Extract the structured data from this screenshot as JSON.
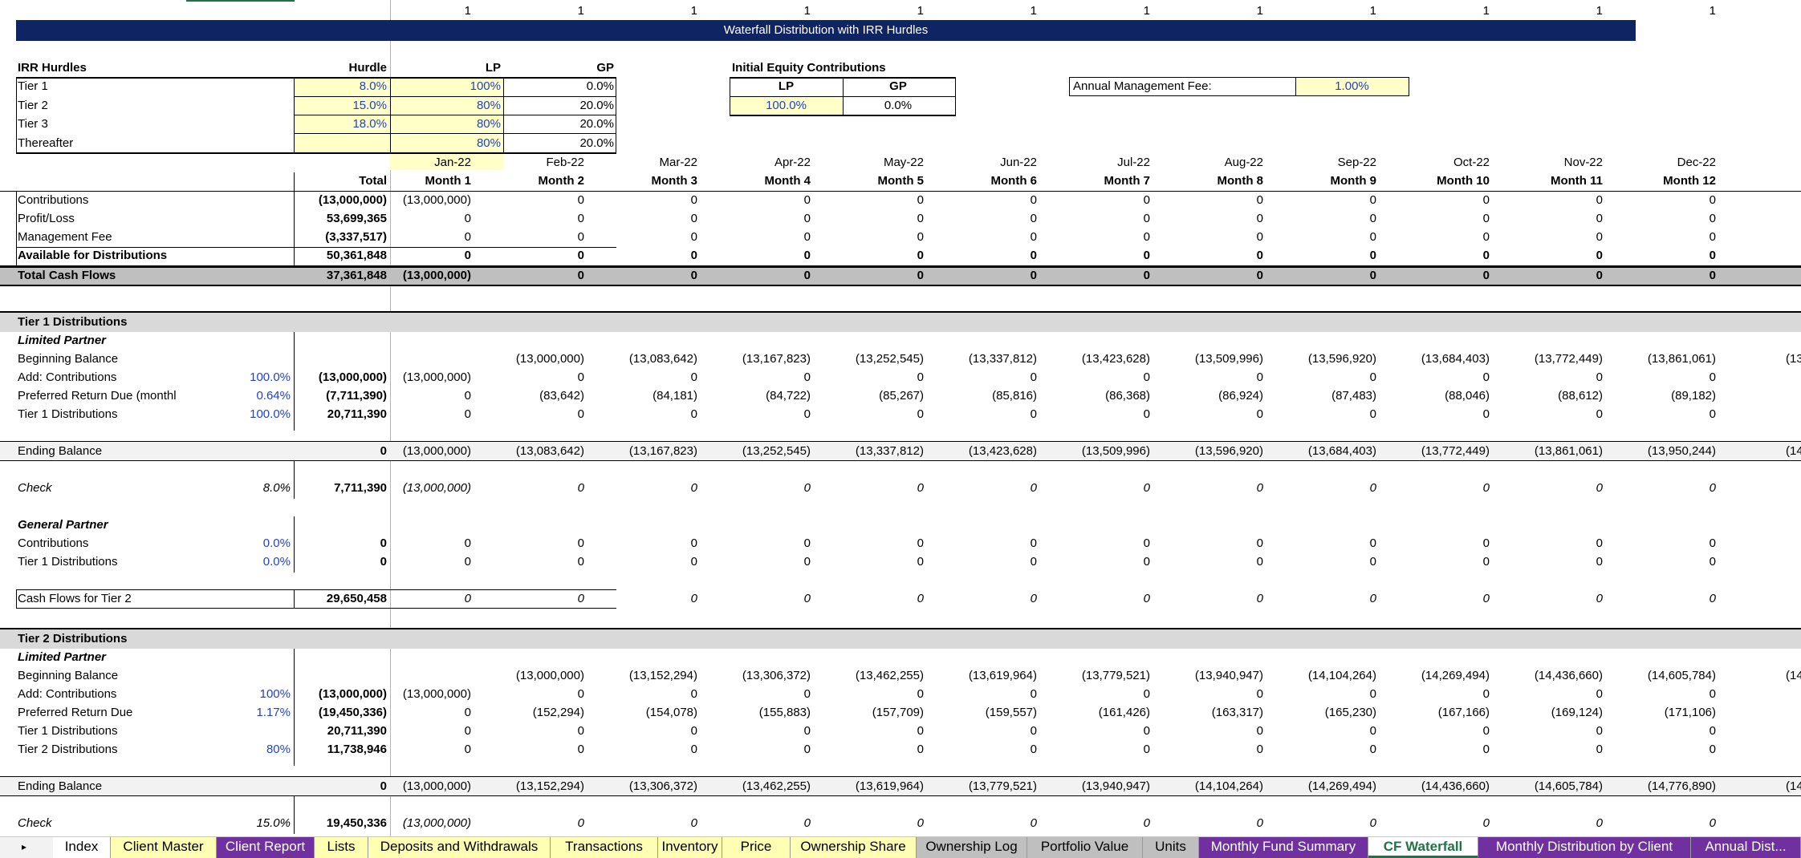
{
  "ones": [
    "1",
    "1",
    "1",
    "1",
    "1",
    "1",
    "1",
    "1",
    "1",
    "1",
    "1",
    "1"
  ],
  "banner": "Waterfall Distribution with IRR Hurdles",
  "hurdles": {
    "title": "IRR Hurdles",
    "col_hurdle": "Hurdle",
    "col_lp": "LP",
    "col_gp": "GP",
    "rows": [
      {
        "label": "Tier 1",
        "hurdle": "8.0%",
        "lp": "100%",
        "gp": "0.0%"
      },
      {
        "label": "Tier 2",
        "hurdle": "15.0%",
        "lp": "80%",
        "gp": "20.0%"
      },
      {
        "label": "Tier 3",
        "hurdle": "18.0%",
        "lp": "80%",
        "gp": "20.0%"
      },
      {
        "label": "Thereafter",
        "hurdle": "",
        "lp": "80%",
        "gp": "20.0%"
      }
    ]
  },
  "equity": {
    "title": "Initial Equity Contributions",
    "lp_label": "LP",
    "gp_label": "GP",
    "lp": "100.0%",
    "gp": "0.0%"
  },
  "fee": {
    "label": "Annual Management Fee:",
    "value": "1.00%"
  },
  "dates": [
    "Jan-22",
    "Feb-22",
    "Mar-22",
    "Apr-22",
    "May-22",
    "Jun-22",
    "Jul-22",
    "Aug-22",
    "Sep-22",
    "Oct-22",
    "Nov-22",
    "Dec-22"
  ],
  "total_label": "Total",
  "months": [
    "Month 1",
    "Month 2",
    "Month 3",
    "Month 4",
    "Month 5",
    "Month 6",
    "Month 7",
    "Month 8",
    "Month 9",
    "Month 10",
    "Month 11",
    "Month 12"
  ],
  "cf": [
    {
      "label": "Contributions",
      "total": "(13,000,000)",
      "v": [
        "(13,000,000)",
        "0",
        "0",
        "0",
        "0",
        "0",
        "0",
        "0",
        "0",
        "0",
        "0",
        "0"
      ]
    },
    {
      "label": "Profit/Loss",
      "total": "53,699,365",
      "v": [
        "0",
        "0",
        "0",
        "0",
        "0",
        "0",
        "0",
        "0",
        "0",
        "0",
        "0",
        "0"
      ]
    },
    {
      "label": "Management Fee",
      "total": "(3,337,517)",
      "v": [
        "0",
        "0",
        "0",
        "0",
        "0",
        "0",
        "0",
        "0",
        "0",
        "0",
        "0",
        "0"
      ]
    },
    {
      "label": "Available for Distributions",
      "total": "50,361,848",
      "v": [
        "0",
        "0",
        "0",
        "0",
        "0",
        "0",
        "0",
        "0",
        "0",
        "0",
        "0",
        "0"
      ]
    },
    {
      "label": "Total Cash Flows",
      "total": "37,361,848",
      "v": [
        "(13,000,000)",
        "0",
        "0",
        "0",
        "0",
        "0",
        "0",
        "0",
        "0",
        "0",
        "0",
        "0"
      ]
    }
  ],
  "t1": {
    "title": "Tier 1 Distributions",
    "lp_title": "Limited Partner",
    "rows": [
      {
        "label": "Beginning Balance",
        "pct": "",
        "total": "",
        "v": [
          "",
          "(13,000,000)",
          "(13,083,642)",
          "(13,167,823)",
          "(13,252,545)",
          "(13,337,812)",
          "(13,423,628)",
          "(13,509,996)",
          "(13,596,920)",
          "(13,684,403)",
          "(13,772,449)",
          "(13,861,061)"
        ]
      },
      {
        "label": "Add: Contributions",
        "pct": "100.0%",
        "total": "(13,000,000)",
        "v": [
          "(13,000,000)",
          "0",
          "0",
          "0",
          "0",
          "0",
          "0",
          "0",
          "0",
          "0",
          "0",
          "0"
        ]
      },
      {
        "label": "Preferred Return Due (monthl",
        "pct": "0.64%",
        "total": "(7,711,390)",
        "v": [
          "0",
          "(83,642)",
          "(84,181)",
          "(84,722)",
          "(85,267)",
          "(85,816)",
          "(86,368)",
          "(86,924)",
          "(87,483)",
          "(88,046)",
          "(88,612)",
          "(89,182)"
        ]
      },
      {
        "label": "Tier 1 Distributions",
        "pct": "100.0%",
        "total": "20,711,390",
        "v": [
          "0",
          "0",
          "0",
          "0",
          "0",
          "0",
          "0",
          "0",
          "0",
          "0",
          "0",
          "0"
        ]
      }
    ],
    "ending": {
      "label": "Ending Balance",
      "total": "0",
      "v": [
        "(13,000,000)",
        "(13,083,642)",
        "(13,167,823)",
        "(13,252,545)",
        "(13,337,812)",
        "(13,423,628)",
        "(13,509,996)",
        "(13,596,920)",
        "(13,684,403)",
        "(13,772,449)",
        "(13,861,061)",
        "(13,950,244)"
      ]
    },
    "check": {
      "label": "Check",
      "pct": "8.0%",
      "total": "7,711,390",
      "v": [
        "(13,000,000)",
        "0",
        "0",
        "0",
        "0",
        "0",
        "0",
        "0",
        "0",
        "0",
        "0",
        "0"
      ]
    },
    "gp_title": "General Partner",
    "gp_rows": [
      {
        "label": "Contributions",
        "pct": "0.0%",
        "total": "0",
        "v": [
          "0",
          "0",
          "0",
          "0",
          "0",
          "0",
          "0",
          "0",
          "0",
          "0",
          "0",
          "0"
        ]
      },
      {
        "label": "Tier 1 Distributions",
        "pct": "0.0%",
        "total": "0",
        "v": [
          "0",
          "0",
          "0",
          "0",
          "0",
          "0",
          "0",
          "0",
          "0",
          "0",
          "0",
          "0"
        ]
      }
    ],
    "cf_next": {
      "label": "Cash Flows for Tier 2",
      "total": "29,650,458",
      "v": [
        "0",
        "0",
        "0",
        "0",
        "0",
        "0",
        "0",
        "0",
        "0",
        "0",
        "0",
        "0"
      ]
    }
  },
  "t2": {
    "title": "Tier 2 Distributions",
    "lp_title": "Limited Partner",
    "rows": [
      {
        "label": "Beginning Balance",
        "pct": "",
        "total": "",
        "v": [
          "",
          "(13,000,000)",
          "(13,152,294)",
          "(13,306,372)",
          "(13,462,255)",
          "(13,619,964)",
          "(13,779,521)",
          "(13,940,947)",
          "(14,104,264)",
          "(14,269,494)",
          "(14,436,660)",
          "(14,605,784)"
        ]
      },
      {
        "label": "Add: Contributions",
        "pct": "100%",
        "total": "(13,000,000)",
        "v": [
          "(13,000,000)",
          "0",
          "0",
          "0",
          "0",
          "0",
          "0",
          "0",
          "0",
          "0",
          "0",
          "0"
        ]
      },
      {
        "label": "Preferred Return Due",
        "pct": "1.17%",
        "total": "(19,450,336)",
        "v": [
          "0",
          "(152,294)",
          "(154,078)",
          "(155,883)",
          "(157,709)",
          "(159,557)",
          "(161,426)",
          "(163,317)",
          "(165,230)",
          "(167,166)",
          "(169,124)",
          "(171,106)"
        ]
      },
      {
        "label": "Tier 1 Distributions",
        "pct": "",
        "total": "20,711,390",
        "v": [
          "0",
          "0",
          "0",
          "0",
          "0",
          "0",
          "0",
          "0",
          "0",
          "0",
          "0",
          "0"
        ]
      },
      {
        "label": "Tier 2 Distributions",
        "pct": "80%",
        "total": "11,738,946",
        "v": [
          "0",
          "0",
          "0",
          "0",
          "0",
          "0",
          "0",
          "0",
          "0",
          "0",
          "0",
          "0"
        ]
      }
    ],
    "ending": {
      "label": "Ending Balance",
      "total": "0",
      "v": [
        "(13,000,000)",
        "(13,152,294)",
        "(13,306,372)",
        "(13,462,255)",
        "(13,619,964)",
        "(13,779,521)",
        "(13,940,947)",
        "(14,104,264)",
        "(14,269,494)",
        "(14,436,660)",
        "(14,605,784)",
        "(14,776,890)"
      ]
    },
    "check": {
      "label": "Check",
      "pct": "15.0%",
      "total": "19,450,336",
      "v": [
        "(13,000,000)",
        "0",
        "0",
        "0",
        "0",
        "0",
        "0",
        "0",
        "0",
        "0",
        "0",
        "0"
      ]
    }
  },
  "partial": {
    "t1_begin": "(13",
    "t1_end": "(14",
    "t2_begin": "(14",
    "t2_end": "(14"
  },
  "tabs": [
    {
      "label": "Index",
      "color": "#ffffff",
      "text": "#000000",
      "active": false
    },
    {
      "label": "Client Master",
      "color": "#ffffb4",
      "text": "#000000",
      "active": false
    },
    {
      "label": "Client Report",
      "color": "#7030a0",
      "text": "#ffffff",
      "active": false
    },
    {
      "label": "Lists",
      "color": "#ffffb4",
      "text": "#000000",
      "active": false
    },
    {
      "label": "Deposits and Withdrawals",
      "color": "#ffffb4",
      "text": "#000000",
      "active": false
    },
    {
      "label": "Transactions",
      "color": "#ffffb4",
      "text": "#000000",
      "active": false
    },
    {
      "label": "Inventory",
      "color": "#ffffb4",
      "text": "#000000",
      "active": false
    },
    {
      "label": "Price",
      "color": "#ffffb4",
      "text": "#000000",
      "active": false
    },
    {
      "label": "Ownership Share",
      "color": "#ffffb4",
      "text": "#000000",
      "active": false
    },
    {
      "label": "Ownership Log",
      "color": "#bfbfbf",
      "text": "#000000",
      "active": false
    },
    {
      "label": "Portfolio Value",
      "color": "#bfbfbf",
      "text": "#000000",
      "active": false
    },
    {
      "label": "Units",
      "color": "#bfbfbf",
      "text": "#000000",
      "active": false
    },
    {
      "label": "Monthly Fund Summary",
      "color": "#7030a0",
      "text": "#ffffff",
      "active": false
    },
    {
      "label": "CF Waterfall",
      "color": "#ffffff",
      "text": "#217346",
      "active": true
    },
    {
      "label": "Monthly Distribution by Client",
      "color": "#7030a0",
      "text": "#ffffff",
      "active": false
    },
    {
      "label": "Annual Dist...",
      "color": "#7030a0",
      "text": "#ffffff",
      "active": false
    }
  ],
  "colors": {
    "banner": "#0f2463",
    "grey_band": "#d9d9d9",
    "total_band": "#bfbfbf",
    "yellow": "#ffffc8",
    "blue_text": "#1f3fd6"
  }
}
